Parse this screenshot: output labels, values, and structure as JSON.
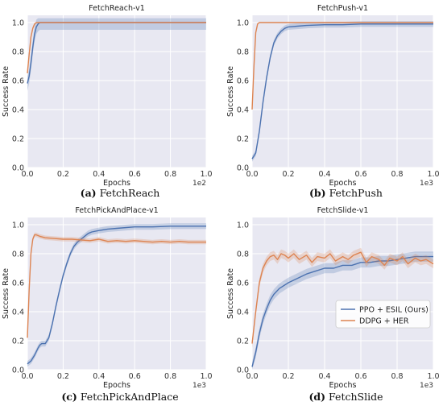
{
  "colors": {
    "plot_background": "#e8e8f2",
    "grid": "#ffffff",
    "series_blue": "#4c72b0",
    "series_orange": "#dd8452"
  },
  "legend": {
    "placement": "center-right",
    "entries": [
      "PPO + ESIL (Ours)",
      "DDPG + HER"
    ]
  },
  "chart_data": [
    {
      "type": "line",
      "title": "FetchReach-v1",
      "caption_letter": "(a)",
      "caption_text": "FetchReach",
      "xlabel": "Epochs",
      "ylabel": "Success Rate",
      "x_scale_label": "1e2",
      "xlim": [
        0,
        100
      ],
      "ylim": [
        0,
        1.05
      ],
      "x_ticks": [
        "0.0",
        "0.2",
        "0.4",
        "0.6",
        "0.8",
        "1.0"
      ],
      "y_ticks": [
        "0.0",
        "0.2",
        "0.4",
        "0.6",
        "0.8",
        "1.0"
      ],
      "grid": true,
      "legend": false,
      "series": [
        {
          "key": "ppo",
          "x": [
            0,
            1,
            2,
            3,
            4,
            5,
            6,
            7,
            8,
            10,
            15,
            30,
            50,
            70,
            90,
            100
          ],
          "y": [
            0.58,
            0.63,
            0.72,
            0.83,
            0.92,
            0.97,
            0.99,
            1.0,
            1.0,
            1.0,
            1.0,
            1.0,
            1.0,
            1.0,
            1.0,
            1.0
          ],
          "band": 0.05
        },
        {
          "key": "ddpg",
          "x": [
            0,
            1,
            2,
            3,
            4,
            5,
            6,
            7,
            8,
            10,
            30,
            50,
            70,
            90,
            100
          ],
          "y": [
            0.65,
            0.78,
            0.9,
            0.96,
            0.99,
            1.0,
            1.0,
            1.0,
            1.0,
            1.0,
            1.0,
            1.0,
            1.0,
            1.0,
            1.0
          ],
          "band": 0.0
        }
      ]
    },
    {
      "type": "line",
      "title": "FetchPush-v1",
      "caption_letter": "(b)",
      "caption_text": "FetchPush",
      "xlabel": "Epochs",
      "ylabel": "Success Rate",
      "x_scale_label": "1e3",
      "xlim": [
        0,
        1000
      ],
      "ylim": [
        0,
        1.05
      ],
      "x_ticks": [
        "0.0",
        "0.2",
        "0.4",
        "0.6",
        "0.8",
        "1.0"
      ],
      "y_ticks": [
        "0.0",
        "0.2",
        "0.4",
        "0.6",
        "0.8",
        "1.0"
      ],
      "grid": true,
      "legend": false,
      "series": [
        {
          "key": "ppo",
          "x": [
            0,
            20,
            40,
            60,
            80,
            100,
            120,
            140,
            160,
            180,
            200,
            250,
            300,
            400,
            500,
            600,
            700,
            800,
            900,
            1000
          ],
          "y": [
            0.06,
            0.1,
            0.25,
            0.45,
            0.62,
            0.76,
            0.86,
            0.91,
            0.94,
            0.96,
            0.97,
            0.975,
            0.98,
            0.985,
            0.985,
            0.99,
            0.99,
            0.99,
            0.99,
            0.99
          ],
          "band": 0.02
        },
        {
          "key": "ddpg",
          "x": [
            0,
            10,
            20,
            30,
            40,
            50,
            100,
            300,
            600,
            1000
          ],
          "y": [
            0.4,
            0.7,
            0.93,
            0.99,
            1.0,
            1.0,
            1.0,
            1.0,
            1.0,
            1.0
          ],
          "band": 0.0
        }
      ]
    },
    {
      "type": "line",
      "title": "FetchPickAndPlace-v1",
      "caption_letter": "(c)",
      "caption_text": "FetchPickAndPlace",
      "xlabel": "Epochs",
      "ylabel": "Success Rate",
      "x_scale_label": "1e3",
      "xlim": [
        0,
        1000
      ],
      "ylim": [
        0,
        1.05
      ],
      "x_ticks": [
        "0.0",
        "0.2",
        "0.4",
        "0.6",
        "0.8",
        "1.0"
      ],
      "y_ticks": [
        "0.0",
        "0.2",
        "0.4",
        "0.6",
        "0.8",
        "1.0"
      ],
      "grid": true,
      "legend": false,
      "series": [
        {
          "key": "ppo",
          "x": [
            0,
            20,
            40,
            60,
            70,
            80,
            100,
            120,
            140,
            160,
            180,
            200,
            220,
            240,
            260,
            280,
            300,
            320,
            340,
            360,
            400,
            450,
            500,
            600,
            700,
            800,
            900,
            1000
          ],
          "y": [
            0.04,
            0.06,
            0.1,
            0.15,
            0.17,
            0.18,
            0.18,
            0.22,
            0.32,
            0.44,
            0.55,
            0.65,
            0.73,
            0.8,
            0.85,
            0.88,
            0.9,
            0.92,
            0.94,
            0.95,
            0.96,
            0.97,
            0.975,
            0.985,
            0.985,
            0.99,
            0.99,
            0.99
          ],
          "band": 0.02
        },
        {
          "key": "ddpg",
          "x": [
            0,
            10,
            20,
            30,
            40,
            50,
            70,
            100,
            150,
            200,
            250,
            300,
            350,
            400,
            450,
            500,
            550,
            600,
            650,
            700,
            750,
            800,
            850,
            900,
            950,
            1000
          ],
          "y": [
            0.22,
            0.55,
            0.8,
            0.9,
            0.93,
            0.93,
            0.92,
            0.91,
            0.905,
            0.9,
            0.9,
            0.895,
            0.89,
            0.9,
            0.885,
            0.89,
            0.885,
            0.89,
            0.885,
            0.88,
            0.885,
            0.88,
            0.885,
            0.88,
            0.88,
            0.88
          ],
          "band": 0.015
        }
      ]
    },
    {
      "type": "line",
      "title": "FetchSlide-v1",
      "caption_letter": "(d)",
      "caption_text": "FetchSlide",
      "xlabel": "Epochs",
      "ylabel": "Success Rate",
      "x_scale_label": "1e3",
      "xlim": [
        0,
        1000
      ],
      "ylim": [
        0,
        1.05
      ],
      "x_ticks": [
        "0.0",
        "0.2",
        "0.4",
        "0.6",
        "0.8",
        "1.0"
      ],
      "y_ticks": [
        "0.0",
        "0.2",
        "0.4",
        "0.6",
        "0.8",
        "1.0"
      ],
      "grid": true,
      "legend": true,
      "series": [
        {
          "key": "ppo",
          "x": [
            0,
            20,
            40,
            60,
            80,
            100,
            120,
            150,
            200,
            250,
            300,
            350,
            400,
            450,
            500,
            550,
            600,
            650,
            700,
            750,
            800,
            850,
            900,
            950,
            1000
          ],
          "y": [
            0.02,
            0.12,
            0.25,
            0.35,
            0.42,
            0.48,
            0.52,
            0.56,
            0.6,
            0.63,
            0.66,
            0.68,
            0.7,
            0.7,
            0.72,
            0.72,
            0.74,
            0.74,
            0.75,
            0.75,
            0.76,
            0.77,
            0.78,
            0.78,
            0.78
          ],
          "band": 0.035
        },
        {
          "key": "ddpg",
          "x": [
            0,
            20,
            40,
            60,
            80,
            100,
            120,
            140,
            160,
            180,
            200,
            230,
            260,
            300,
            330,
            360,
            400,
            430,
            460,
            500,
            530,
            560,
            600,
            630,
            660,
            700,
            730,
            760,
            800,
            830,
            860,
            900,
            930,
            960,
            1000
          ],
          "y": [
            0.18,
            0.4,
            0.6,
            0.7,
            0.75,
            0.78,
            0.79,
            0.76,
            0.8,
            0.79,
            0.77,
            0.8,
            0.76,
            0.79,
            0.74,
            0.78,
            0.77,
            0.8,
            0.75,
            0.78,
            0.76,
            0.79,
            0.81,
            0.74,
            0.78,
            0.76,
            0.72,
            0.77,
            0.75,
            0.78,
            0.73,
            0.77,
            0.75,
            0.76,
            0.73
          ],
          "band": 0.03
        }
      ]
    }
  ]
}
